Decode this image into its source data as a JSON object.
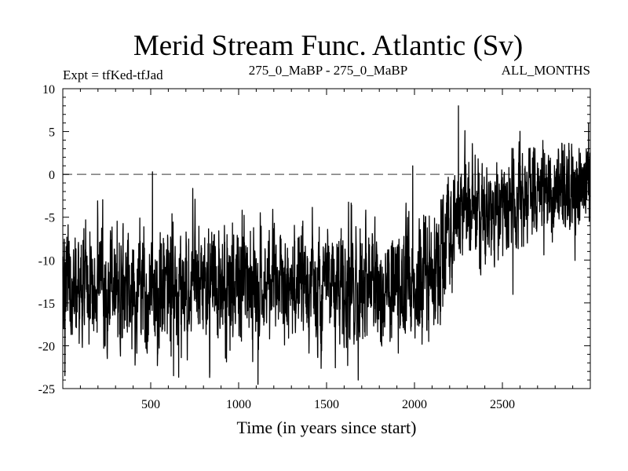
{
  "chart_data": {
    "type": "line",
    "title": "Merid Stream Func. Atlantic (Sv)",
    "subtitle_left": "Expt = tfKed-tfJad",
    "subtitle_center": "275_0_MaBP - 275_0_MaBP",
    "subtitle_right": "ALL_MONTHS",
    "xlabel": "Time (in years since start)",
    "ylabel": "",
    "xlim": [
      0,
      3000
    ],
    "ylim": [
      -25,
      10
    ],
    "xticks": [
      500,
      1000,
      1500,
      2000,
      2500
    ],
    "yticks": [
      10,
      5,
      0,
      -5,
      -10,
      -15,
      -20,
      -25
    ],
    "reference_line": {
      "y": 0,
      "style": "dashed"
    },
    "grid": false,
    "legend": "none",
    "series_color": "#000000",
    "series": [
      {
        "x": [
          0,
          100,
          200,
          300,
          400,
          500,
          600,
          700,
          800,
          900,
          1000,
          1100,
          1200,
          1300,
          1400,
          1500,
          1600,
          1700,
          1800,
          1900,
          2000,
          2100,
          2150,
          2200,
          2250,
          2300,
          2400,
          2500,
          2600,
          2700,
          2800,
          2900,
          3000
        ],
        "y": [
          -12.5,
          -13,
          -13.5,
          -13,
          -13.2,
          -12.8,
          -13.5,
          -13.2,
          -13,
          -13.3,
          -12.8,
          -13.5,
          -13,
          -13.2,
          -12.9,
          -13.1,
          -13.4,
          -13.2,
          -13,
          -13.2,
          -12.8,
          -11,
          -9,
          -6,
          -4,
          -3.8,
          -3.5,
          -3,
          -2.5,
          -2,
          -1.8,
          -1.5,
          -1.3
        ],
        "noise_amplitude": [
          3.5,
          3.5,
          3.5,
          3.5,
          3.5,
          3.5,
          3.5,
          3.5,
          3.5,
          3.5,
          3.5,
          3.5,
          3.5,
          3.5,
          3.5,
          3.5,
          3.5,
          3.5,
          3.5,
          3.5,
          3.5,
          3.5,
          3.5,
          3.5,
          3.0,
          2.8,
          2.8,
          2.8,
          2.8,
          2.8,
          2.8,
          2.8,
          2.8
        ],
        "peaks": [
          {
            "x": 12,
            "y": -23.5
          },
          {
            "x": 510,
            "y": 0.3
          },
          {
            "x": 630,
            "y": -23.5
          },
          {
            "x": 1110,
            "y": -24.5
          },
          {
            "x": 1680,
            "y": -24
          },
          {
            "x": 1990,
            "y": 1
          },
          {
            "x": 2250,
            "y": 8
          },
          {
            "x": 2370,
            "y": -11
          },
          {
            "x": 2560,
            "y": -14
          },
          {
            "x": 2990,
            "y": 6
          }
        ]
      }
    ]
  }
}
